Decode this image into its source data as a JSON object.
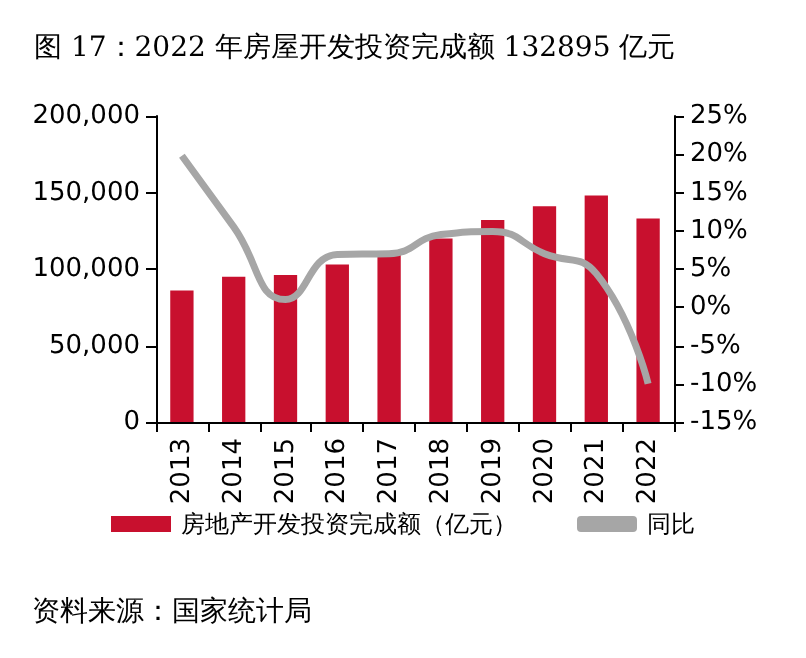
{
  "chart_data": {
    "type": "bar",
    "title": "图 17：2022 年房屋开发投资完成额 132895 亿元",
    "annotations": [
      "资料来源：国家统计局"
    ],
    "categories": [
      "2013",
      "2014",
      "2015",
      "2016",
      "2017",
      "2018",
      "2019",
      "2020",
      "2021",
      "2022"
    ],
    "series": [
      {
        "name": "房地产开发投资完成额（亿元）",
        "color": "#c8102e",
        "values": [
          86000,
          95000,
          96000,
          103000,
          110000,
          120000,
          132000,
          141000,
          148000,
          133000
        ]
      },
      {
        "name": "同比",
        "type": "line",
        "axis": "y2",
        "color": "#a6a6a6",
        "values": [
          19.8,
          10.5,
          1.0,
          6.9,
          7.0,
          9.5,
          9.9,
          7.0,
          4.4,
          -10.0
        ]
      }
    ],
    "ylim": [
      0,
      200000
    ],
    "yticks": [
      {
        "value": 0,
        "label": "0"
      },
      {
        "value": 50000,
        "label": "50,000"
      },
      {
        "value": 100000,
        "label": "100,000"
      },
      {
        "value": 150000,
        "label": "150,000"
      },
      {
        "value": 200000,
        "label": "200,000"
      }
    ],
    "y2lim": [
      -15,
      25
    ],
    "y2ticks": [
      {
        "value": -15,
        "label": "-15%"
      },
      {
        "value": -10,
        "label": "-10%"
      },
      {
        "value": -5,
        "label": "-5%"
      },
      {
        "value": 0,
        "label": "0%"
      },
      {
        "value": 5,
        "label": "5%"
      },
      {
        "value": 10,
        "label": "10%"
      },
      {
        "value": 15,
        "label": "15%"
      },
      {
        "value": 20,
        "label": "20%"
      },
      {
        "value": 25,
        "label": "25%"
      }
    ],
    "grid": false,
    "legend": "bottom",
    "marker": "none"
  }
}
